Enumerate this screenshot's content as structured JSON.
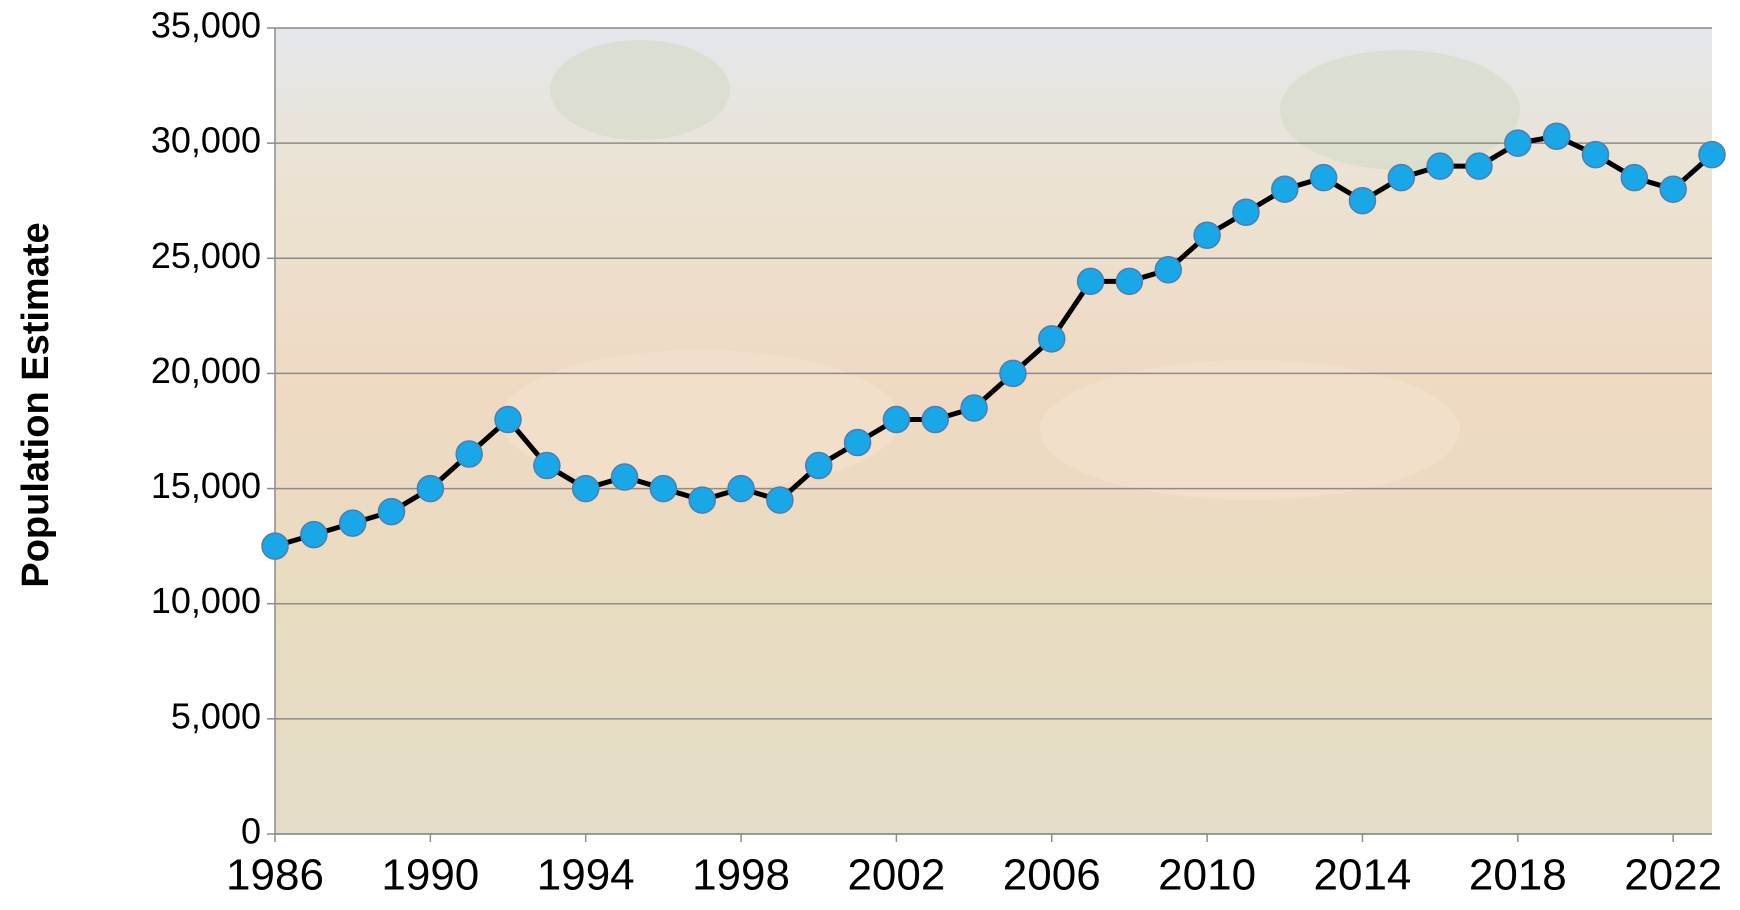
{
  "chart_data": {
    "type": "line",
    "ylabel": "Population Estimate",
    "x": [
      1986,
      1987,
      1988,
      1989,
      1990,
      1991,
      1992,
      1993,
      1994,
      1995,
      1996,
      1997,
      1998,
      1999,
      2000,
      2001,
      2002,
      2003,
      2004,
      2005,
      2006,
      2007,
      2008,
      2009,
      2010,
      2011,
      2012,
      2013,
      2014,
      2015,
      2016,
      2017,
      2018,
      2019,
      2020,
      2021,
      2022,
      2023
    ],
    "series": [
      {
        "color": "#1aa7e8",
        "values": [
          12500,
          13000,
          13500,
          14000,
          15000,
          16500,
          18000,
          16000,
          15000,
          15500,
          15000,
          14500,
          15000,
          14500,
          16000,
          17000,
          18000,
          18000,
          18500,
          20000,
          21500,
          24000,
          24000,
          24500,
          26000,
          27000,
          28000,
          28500,
          27500,
          28500,
          29000,
          29000,
          30000,
          30300,
          29500,
          28500,
          28000,
          29500
        ]
      }
    ],
    "xlim": [
      1986,
      2023
    ],
    "xticks": [
      1986,
      1990,
      1994,
      1998,
      2002,
      2006,
      2010,
      2014,
      2018,
      2022
    ],
    "ylim": [
      0,
      35000
    ],
    "yticks": [
      0,
      {
        "value": 5000,
        "label": "5,000"
      },
      {
        "value": 10000,
        "label": "10,000"
      },
      {
        "value": 15000,
        "label": "15,000"
      },
      {
        "value": 20000,
        "label": "20,000"
      },
      {
        "value": 25000,
        "label": "25,000"
      },
      {
        "value": 30000,
        "label": "30,000"
      },
      {
        "value": 35000,
        "label": "35,000"
      }
    ],
    "grid": true
  }
}
